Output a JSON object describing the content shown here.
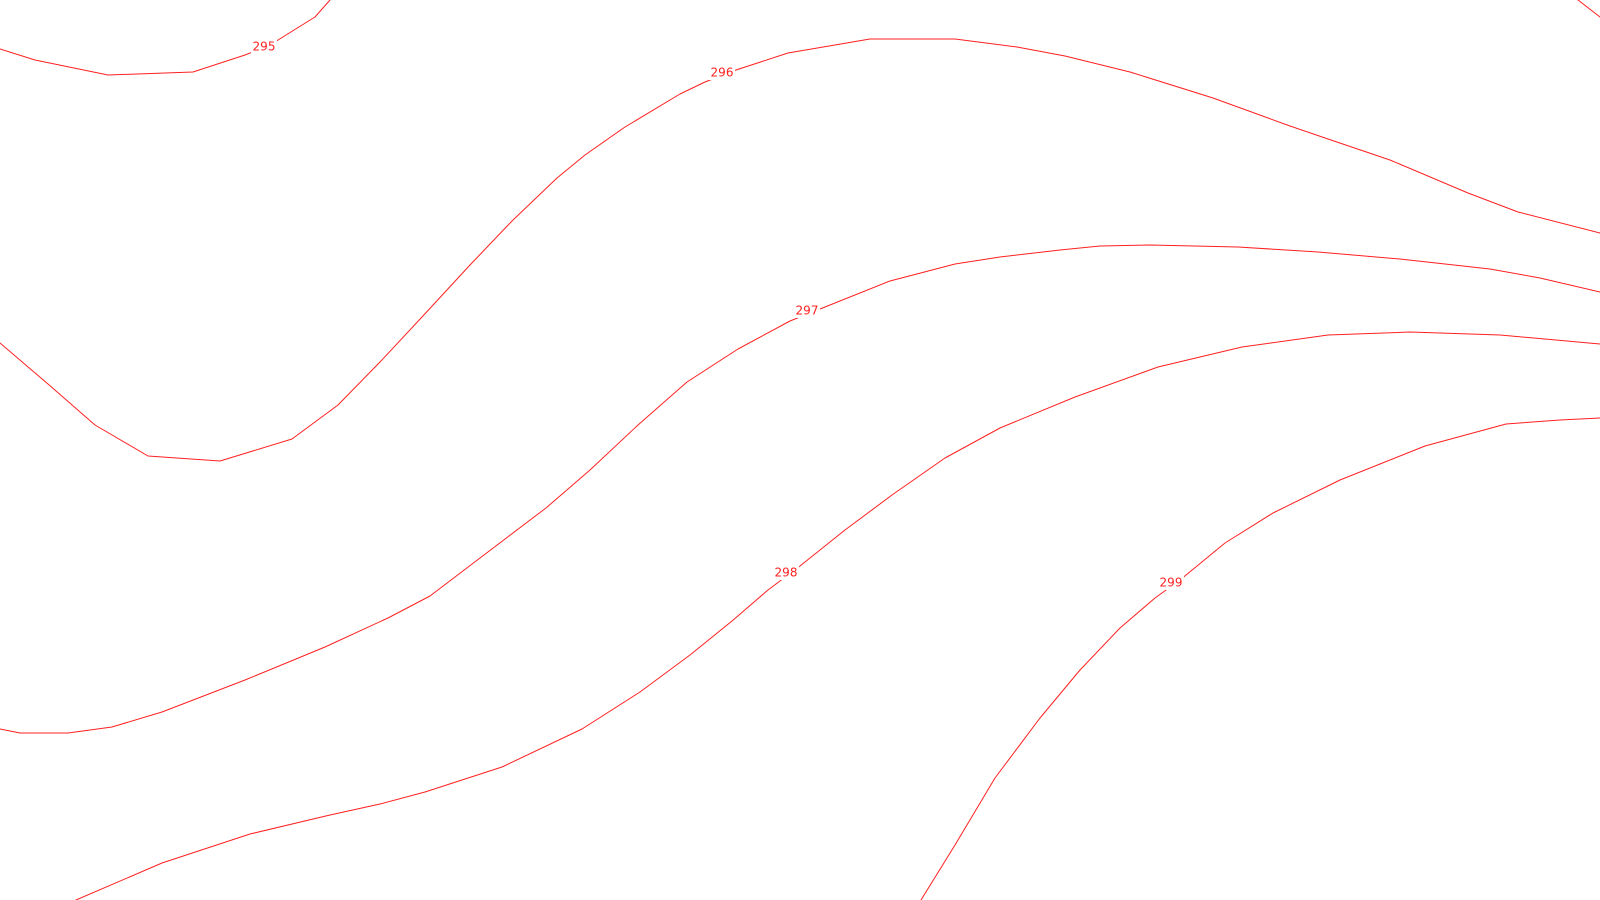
{
  "map": {
    "line_color": "#ff2020",
    "background_color": "#ffffff",
    "contours": [
      {
        "level": "295"
      },
      {
        "level": "296"
      },
      {
        "level": "297"
      },
      {
        "level": "298"
      },
      {
        "level": "299"
      }
    ]
  }
}
